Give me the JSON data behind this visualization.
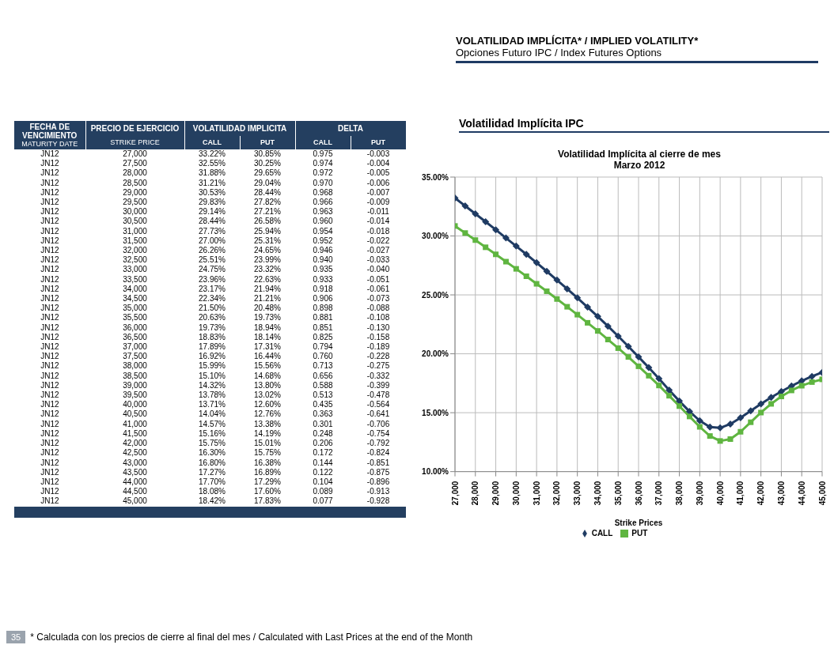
{
  "chart_data": [
    {
      "type": "heatmap",
      "annotations": [
        "FECHA DE VENCIMIENTO",
        "MATURITY DATE",
        "PRECIO DE EJERCICIO",
        "STRIKE PRICE",
        "VOLATILIDAD IMPLICITA",
        "DELTA"
      ],
      "categories": [
        "CALL",
        "PUT",
        "CALL",
        "PUT"
      ],
      "y2_categories": [
        "JN12",
        "JN12",
        "JN12",
        "JN12",
        "JN12",
        "JN12",
        "JN12",
        "JN12",
        "JN12",
        "JN12",
        "JN12",
        "JN12",
        "JN12",
        "JN12",
        "JN12",
        "JN12",
        "JN12",
        "JN12",
        "JN12",
        "JN12",
        "JN12",
        "JN12",
        "JN12",
        "JN12",
        "JN12",
        "JN12",
        "JN12",
        "JN12",
        "JN12",
        "JN12",
        "JN12",
        "JN12",
        "JN12",
        "JN12",
        "JN12",
        "JN12",
        "JN12"
      ],
      "y_categories": [
        "27,000",
        "27,500",
        "28,000",
        "28,500",
        "29,000",
        "29,500",
        "30,000",
        "30,500",
        "31,000",
        "31,500",
        "32,000",
        "32,500",
        "33,000",
        "33,500",
        "34,000",
        "34,500",
        "35,000",
        "35,500",
        "36,000",
        "36,500",
        "37,000",
        "37,500",
        "38,000",
        "38,500",
        "39,000",
        "39,500",
        "40,000",
        "40,500",
        "41,000",
        "41,500",
        "42,000",
        "42,500",
        "43,000",
        "43,500",
        "44,000",
        "44,500",
        "45,000"
      ],
      "cells": [
        [
          33.22,
          30.85,
          0.975,
          -0.003
        ],
        [
          32.55,
          30.25,
          0.974,
          -0.004
        ],
        [
          31.88,
          29.65,
          0.972,
          -0.005
        ],
        [
          31.21,
          29.04,
          0.97,
          -0.006
        ],
        [
          30.53,
          28.44,
          0.968,
          -0.007
        ],
        [
          29.83,
          27.82,
          0.966,
          -0.009
        ],
        [
          29.14,
          27.21,
          0.963,
          -0.011
        ],
        [
          28.44,
          26.58,
          0.96,
          -0.014
        ],
        [
          27.73,
          25.94,
          0.954,
          -0.018
        ],
        [
          27.0,
          25.31,
          0.952,
          -0.022
        ],
        [
          26.26,
          24.65,
          0.946,
          -0.027
        ],
        [
          25.51,
          23.99,
          0.94,
          -0.033
        ],
        [
          24.75,
          23.32,
          0.935,
          -0.04
        ],
        [
          23.96,
          22.63,
          0.933,
          -0.051
        ],
        [
          23.17,
          21.94,
          0.918,
          -0.061
        ],
        [
          22.34,
          21.21,
          0.906,
          -0.073
        ],
        [
          21.5,
          20.48,
          0.898,
          -0.088
        ],
        [
          20.63,
          19.73,
          0.881,
          -0.108
        ],
        [
          19.73,
          18.94,
          0.851,
          -0.13
        ],
        [
          18.83,
          18.14,
          0.825,
          -0.158
        ],
        [
          17.89,
          17.31,
          0.794,
          -0.189
        ],
        [
          16.92,
          16.44,
          0.76,
          -0.228
        ],
        [
          15.99,
          15.56,
          0.713,
          -0.275
        ],
        [
          15.1,
          14.68,
          0.656,
          -0.332
        ],
        [
          14.32,
          13.8,
          0.588,
          -0.399
        ],
        [
          13.78,
          13.02,
          0.513,
          -0.478
        ],
        [
          13.71,
          12.6,
          0.435,
          -0.564
        ],
        [
          14.04,
          12.76,
          0.363,
          -0.641
        ],
        [
          14.57,
          13.38,
          0.301,
          -0.706
        ],
        [
          15.16,
          14.19,
          0.248,
          -0.754
        ],
        [
          15.75,
          15.01,
          0.206,
          -0.792
        ],
        [
          16.3,
          15.75,
          0.172,
          -0.824
        ],
        [
          16.8,
          16.38,
          0.144,
          -0.851
        ],
        [
          17.27,
          16.89,
          0.122,
          -0.875
        ],
        [
          17.7,
          17.29,
          0.104,
          -0.896
        ],
        [
          18.08,
          17.6,
          0.089,
          -0.913
        ],
        [
          18.42,
          17.83,
          0.077,
          -0.928
        ]
      ],
      "cell_labels": [
        [
          "33.22%",
          "30.85%",
          "0.975",
          "-0.003"
        ],
        [
          "32.55%",
          "30.25%",
          "0.974",
          "-0.004"
        ],
        [
          "31.88%",
          "29.65%",
          "0.972",
          "-0.005"
        ],
        [
          "31.21%",
          "29.04%",
          "0.970",
          "-0.006"
        ],
        [
          "30.53%",
          "28.44%",
          "0.968",
          "-0.007"
        ],
        [
          "29.83%",
          "27.82%",
          "0.966",
          "-0.009"
        ],
        [
          "29.14%",
          "27.21%",
          "0.963",
          "-0.011"
        ],
        [
          "28.44%",
          "26.58%",
          "0.960",
          "-0.014"
        ],
        [
          "27.73%",
          "25.94%",
          "0.954",
          "-0.018"
        ],
        [
          "27.00%",
          "25.31%",
          "0.952",
          "-0.022"
        ],
        [
          "26.26%",
          "24.65%",
          "0.946",
          "-0.027"
        ],
        [
          "25.51%",
          "23.99%",
          "0.940",
          "-0.033"
        ],
        [
          "24.75%",
          "23.32%",
          "0.935",
          "-0.040"
        ],
        [
          "23.96%",
          "22.63%",
          "0.933",
          "-0.051"
        ],
        [
          "23.17%",
          "21.94%",
          "0.918",
          "-0.061"
        ],
        [
          "22.34%",
          "21.21%",
          "0.906",
          "-0.073"
        ],
        [
          "21.50%",
          "20.48%",
          "0.898",
          "-0.088"
        ],
        [
          "20.63%",
          "19.73%",
          "0.881",
          "-0.108"
        ],
        [
          "19.73%",
          "18.94%",
          "0.851",
          "-0.130"
        ],
        [
          "18.83%",
          "18.14%",
          "0.825",
          "-0.158"
        ],
        [
          "17.89%",
          "17.31%",
          "0.794",
          "-0.189"
        ],
        [
          "16.92%",
          "16.44%",
          "0.760",
          "-0.228"
        ],
        [
          "15.99%",
          "15.56%",
          "0.713",
          "-0.275"
        ],
        [
          "15.10%",
          "14.68%",
          "0.656",
          "-0.332"
        ],
        [
          "14.32%",
          "13.80%",
          "0.588",
          "-0.399"
        ],
        [
          "13.78%",
          "13.02%",
          "0.513",
          "-0.478"
        ],
        [
          "13.71%",
          "12.60%",
          "0.435",
          "-0.564"
        ],
        [
          "14.04%",
          "12.76%",
          "0.363",
          "-0.641"
        ],
        [
          "14.57%",
          "13.38%",
          "0.301",
          "-0.706"
        ],
        [
          "15.16%",
          "14.19%",
          "0.248",
          "-0.754"
        ],
        [
          "15.75%",
          "15.01%",
          "0.206",
          "-0.792"
        ],
        [
          "16.30%",
          "15.75%",
          "0.172",
          "-0.824"
        ],
        [
          "16.80%",
          "16.38%",
          "0.144",
          "-0.851"
        ],
        [
          "17.27%",
          "16.89%",
          "0.122",
          "-0.875"
        ],
        [
          "17.70%",
          "17.29%",
          "0.104",
          "-0.896"
        ],
        [
          "18.08%",
          "17.60%",
          "0.089",
          "-0.913"
        ],
        [
          "18.42%",
          "17.83%",
          "0.077",
          "-0.928"
        ]
      ]
    },
    {
      "type": "line",
      "title": "Volatilidad Implícita  al cierre de mes",
      "subtitle": "Marzo 2012",
      "xlabel": "Strike Prices",
      "annotations": [
        "VOLATILIDAD IMPLÍCITA* / IMPLIED VOLATILITY*",
        "Opciones Futuro IPC / Index Futures Options",
        "Volatilidad Implícita IPC",
        "* Calculada con los precios de cierre al final del mes / Calculated with Last Prices at the end of the Month",
        "35"
      ],
      "x": [
        27000,
        27500,
        28000,
        28500,
        29000,
        29500,
        30000,
        30500,
        31000,
        31500,
        32000,
        32500,
        33000,
        33500,
        34000,
        34500,
        35000,
        35500,
        36000,
        36500,
        37000,
        37500,
        38000,
        38500,
        39000,
        39500,
        40000,
        40500,
        41000,
        41500,
        42000,
        42500,
        43000,
        43500,
        44000,
        44500,
        45000
      ],
      "xlim": [
        27000,
        45000
      ],
      "xticks": [
        {
          "value": 27000,
          "label": "27,000"
        },
        {
          "value": 28000,
          "label": "28,000"
        },
        {
          "value": 29000,
          "label": "29,000"
        },
        {
          "value": 30000,
          "label": "30,000"
        },
        {
          "value": 31000,
          "label": "31,000"
        },
        {
          "value": 32000,
          "label": "32,000"
        },
        {
          "value": 33000,
          "label": "33,000"
        },
        {
          "value": 34000,
          "label": "34,000"
        },
        {
          "value": 35000,
          "label": "35,000"
        },
        {
          "value": 36000,
          "label": "36,000"
        },
        {
          "value": 37000,
          "label": "37,000"
        },
        {
          "value": 38000,
          "label": "38,000"
        },
        {
          "value": 39000,
          "label": "39,000"
        },
        {
          "value": 40000,
          "label": "40,000"
        },
        {
          "value": 41000,
          "label": "41,000"
        },
        {
          "value": 42000,
          "label": "42,000"
        },
        {
          "value": 43000,
          "label": "43,000"
        },
        {
          "value": 44000,
          "label": "44,000"
        },
        {
          "value": 45000,
          "label": "45,000"
        }
      ],
      "ylim": [
        10,
        35
      ],
      "yticks": [
        {
          "value": 10,
          "label": "10.00%"
        },
        {
          "value": 15,
          "label": "15.00%"
        },
        {
          "value": 20,
          "label": "20.00%"
        },
        {
          "value": 25,
          "label": "25.00%"
        },
        {
          "value": 30,
          "label": "30.00%"
        },
        {
          "value": 35,
          "label": "35.00%"
        }
      ],
      "grid": true,
      "legend": "bottom",
      "line_style": "solid",
      "series": [
        {
          "name": "CALL",
          "color": "#1f3b63",
          "marker": "diamond",
          "values": [
            33.22,
            32.55,
            31.88,
            31.21,
            30.53,
            29.83,
            29.14,
            28.44,
            27.73,
            27.0,
            26.26,
            25.51,
            24.75,
            23.96,
            23.17,
            22.34,
            21.5,
            20.63,
            19.73,
            18.83,
            17.89,
            16.92,
            15.99,
            15.1,
            14.32,
            13.78,
            13.71,
            14.04,
            14.57,
            15.16,
            15.75,
            16.3,
            16.8,
            17.27,
            17.7,
            18.08,
            18.42
          ]
        },
        {
          "name": "PUT",
          "color": "#5fb540",
          "marker": "square",
          "values": [
            30.85,
            30.25,
            29.65,
            29.04,
            28.44,
            27.82,
            27.21,
            26.58,
            25.94,
            25.31,
            24.65,
            23.99,
            23.32,
            22.63,
            21.94,
            21.21,
            20.48,
            19.73,
            18.94,
            18.14,
            17.31,
            16.44,
            15.56,
            14.68,
            13.8,
            13.02,
            12.6,
            12.76,
            13.38,
            14.19,
            15.01,
            15.75,
            16.38,
            16.89,
            17.29,
            17.6,
            17.83
          ]
        }
      ]
    }
  ]
}
